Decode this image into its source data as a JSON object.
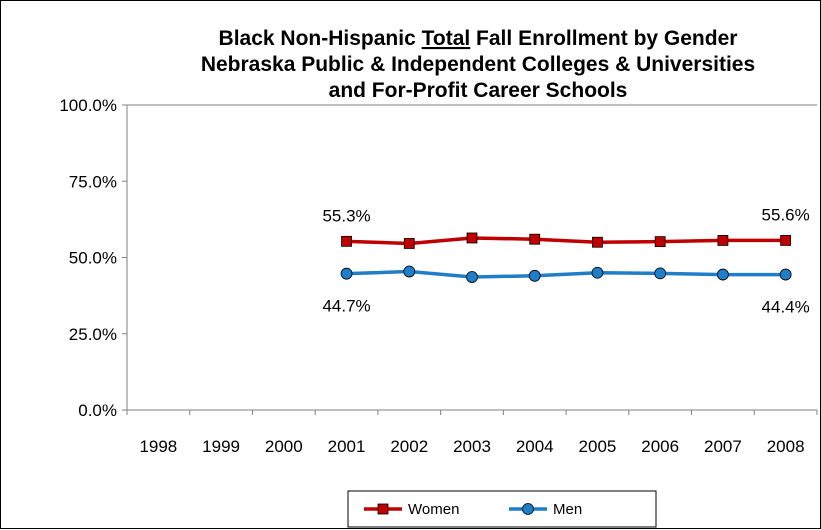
{
  "chart_data": {
    "type": "line",
    "title": {
      "line1_before": "Black Non-Hispanic ",
      "line1_underlined": "Total",
      "line1_after": " Fall Enrollment by Gender",
      "line2": "Nebraska Public & Independent Colleges & Universities",
      "line3": "and For-Profit Career Schools"
    },
    "x": [
      "1998",
      "1999",
      "2000",
      "2001",
      "2002",
      "2003",
      "2004",
      "2005",
      "2006",
      "2007",
      "2008"
    ],
    "y_ticks": [
      "0.0%",
      "25.0%",
      "50.0%",
      "75.0%",
      "100.0%"
    ],
    "y_tick_values": [
      0,
      25,
      50,
      75,
      100
    ],
    "ylim": [
      0,
      100
    ],
    "grid": false,
    "legend_position": "bottom",
    "series": [
      {
        "name": "Women",
        "color": "#c00000",
        "marker": "square",
        "values": [
          null,
          null,
          null,
          55.3,
          54.6,
          56.4,
          56.0,
          55.0,
          55.2,
          55.6,
          55.6
        ]
      },
      {
        "name": "Men",
        "color": "#1f7ec8",
        "marker": "circle",
        "values": [
          null,
          null,
          null,
          44.7,
          45.4,
          43.6,
          44.0,
          45.0,
          44.8,
          44.4,
          44.4
        ]
      }
    ],
    "data_labels": [
      {
        "series": 0,
        "x": "2001",
        "text": "55.3%",
        "position": "above"
      },
      {
        "series": 0,
        "x": "2008",
        "text": "55.6%",
        "position": "above"
      },
      {
        "series": 1,
        "x": "2001",
        "text": "44.7%",
        "position": "below"
      },
      {
        "series": 1,
        "x": "2008",
        "text": "44.4%",
        "position": "below"
      }
    ]
  }
}
